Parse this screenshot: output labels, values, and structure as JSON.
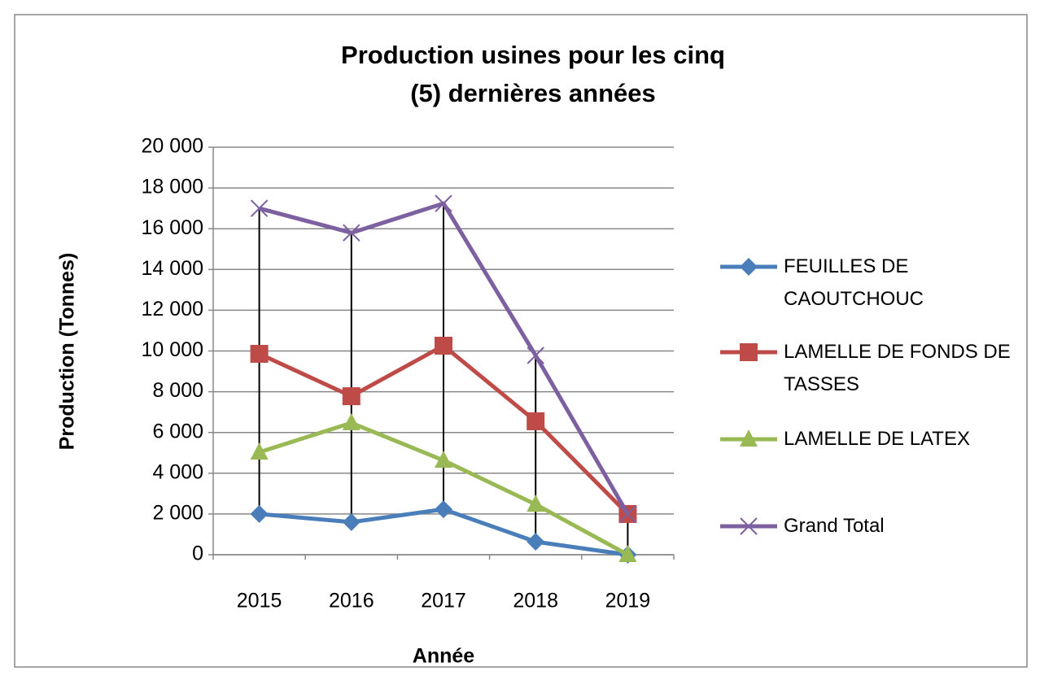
{
  "chart_data": {
    "type": "line",
    "title": "Production usines pour les cinq (5) dernières années",
    "x_label": "Année",
    "y_label": "Production (Tonnes)",
    "categories": [
      "2015",
      "2016",
      "2017",
      "2018",
      "2019"
    ],
    "series": [
      {
        "name": "FEUILLES DE CAOUTCHOUC",
        "color": "#4a7ebb",
        "marker": "diamond",
        "values": [
          2000,
          1600,
          2230,
          640,
          0
        ]
      },
      {
        "name": "LAMELLE DE  FONDS DE TASSES",
        "color": "#be4b48",
        "marker": "square",
        "values": [
          9860,
          7780,
          10260,
          6550,
          2000
        ]
      },
      {
        "name": "LAMELLE DE  LATEX",
        "color": "#98b954",
        "marker": "triangle",
        "values": [
          5030,
          6470,
          4630,
          2470,
          0
        ]
      },
      {
        "name": "Grand Total",
        "color": "#7d60a0",
        "marker": "x",
        "values": [
          17000,
          15800,
          17240,
          9780,
          2000
        ]
      }
    ],
    "ylim": [
      0,
      20000
    ],
    "yticks": [
      0,
      {
        "value": 2000,
        "label": "2 000"
      },
      {
        "value": 4000,
        "label": "4 000"
      },
      {
        "value": 6000,
        "label": "6 000"
      },
      {
        "value": 8000,
        "label": "8 000"
      },
      {
        "value": 10000,
        "label": "10 000"
      },
      {
        "value": 12000,
        "label": "12 000"
      },
      {
        "value": 14000,
        "label": "14 000"
      },
      {
        "value": 16000,
        "label": "16 000"
      },
      {
        "value": 18000,
        "label": "18 000"
      },
      {
        "value": 20000,
        "label": "20 000"
      }
    ],
    "grid": true,
    "high_low_lines": true,
    "legend": "right"
  }
}
